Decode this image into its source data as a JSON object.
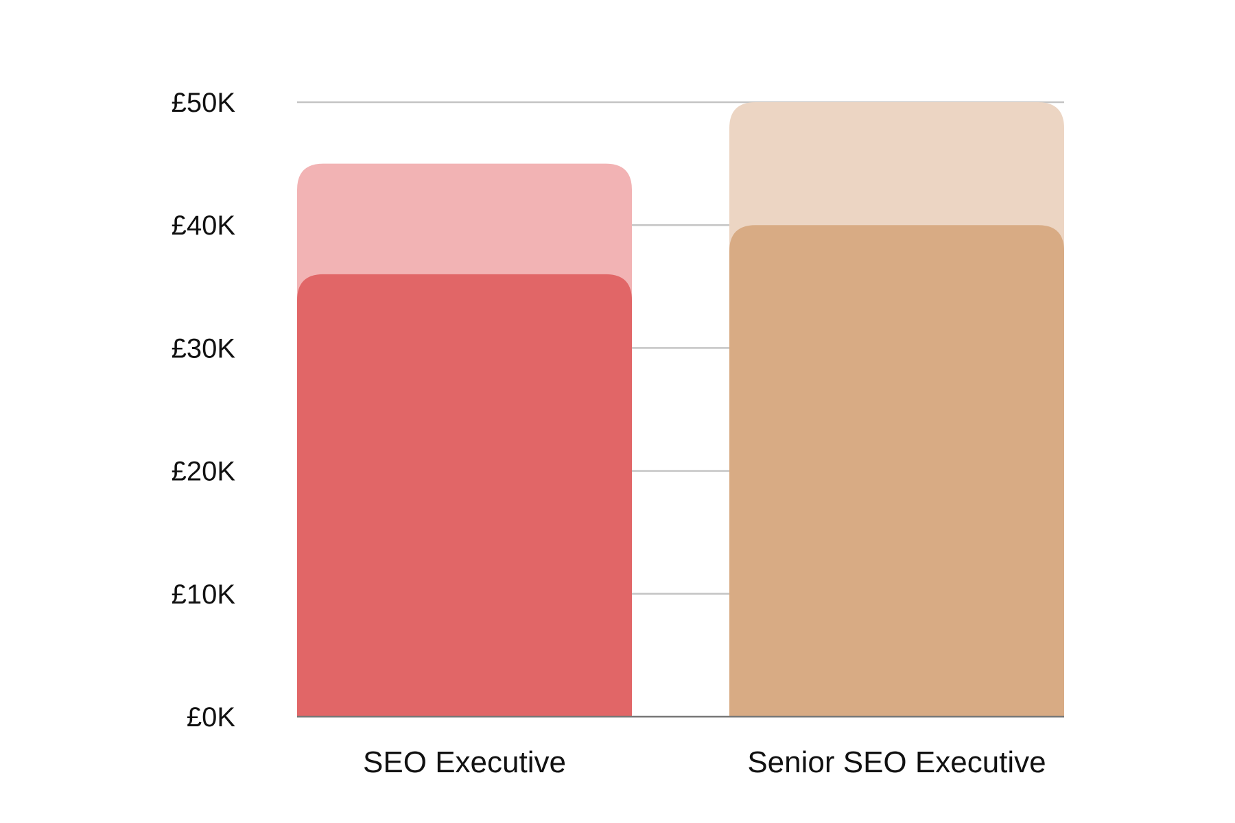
{
  "chart_data": {
    "type": "bar",
    "categories": [
      "SEO Executive",
      "Senior SEO Executive"
    ],
    "ylim": [
      0,
      50000
    ],
    "yticks": [
      0,
      10000,
      20000,
      30000,
      40000,
      50000
    ],
    "ytick_labels": [
      "£0K",
      "£10K",
      "£20K",
      "£30K",
      "£40K",
      "£50K"
    ],
    "grid": true,
    "bars": [
      {
        "category": "SEO Executive",
        "low": 36000,
        "high": 45000,
        "low_color": "#e16667",
        "high_color": "#f2b3b4"
      },
      {
        "category": "Senior SEO Executive",
        "low": 40000,
        "high": 50000,
        "low_color": "#d8ab84",
        "high_color": "#ecd5c3"
      }
    ]
  }
}
